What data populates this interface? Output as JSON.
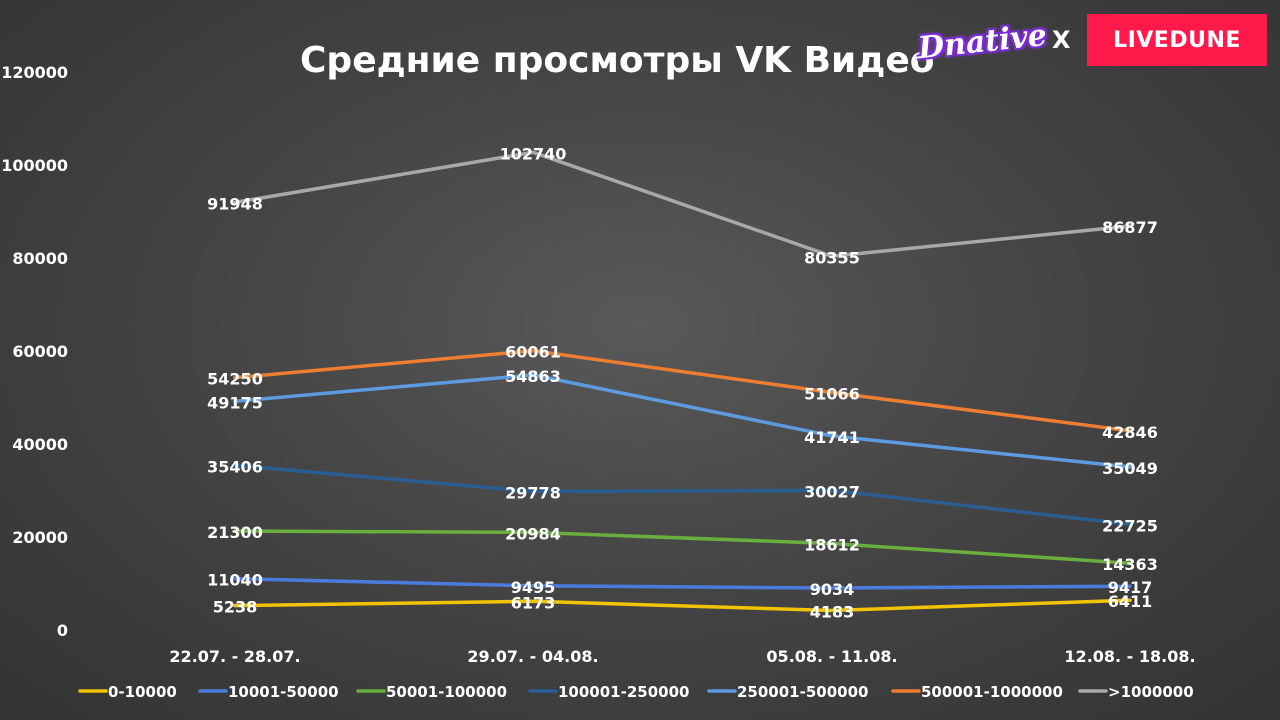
{
  "brand": {
    "left_logo_text": "Dnative",
    "separator": "X",
    "right_logo_text": "LIVEDUNE"
  },
  "chart_data": {
    "type": "line",
    "title": "Средние просмотры VK Видео",
    "xlabel": "",
    "ylabel": "",
    "ylim": [
      0,
      120000
    ],
    "yticks": [
      0,
      20000,
      40000,
      60000,
      80000,
      100000,
      120000
    ],
    "categories": [
      "22.07. - 28.07.",
      "29.07. - 04.08.",
      "05.08. - 11.08.",
      "12.08. - 18.08."
    ],
    "legend_position": "bottom",
    "grid": false,
    "series": [
      {
        "name": "0-10000",
        "color": "#f2c300",
        "values": [
          5238,
          6173,
          4183,
          6411
        ]
      },
      {
        "name": "10001-50000",
        "color": "#4c7be0",
        "values": [
          11040,
          9495,
          9034,
          9417
        ]
      },
      {
        "name": "50001-100000",
        "color": "#6aae3f",
        "values": [
          21300,
          20984,
          18612,
          14363
        ]
      },
      {
        "name": "100001-250000",
        "color": "#2a5e93",
        "values": [
          35406,
          29778,
          30027,
          22725
        ]
      },
      {
        "name": "250001-500000",
        "color": "#5d9be0",
        "values": [
          49175,
          54863,
          41741,
          35049
        ]
      },
      {
        "name": "500001-1000000",
        "color": "#ee7d31",
        "values": [
          54250,
          60061,
          51066,
          42846
        ]
      },
      {
        "name": ">1000000",
        "color": "#a8a8a8",
        "values": [
          91948,
          102740,
          80355,
          86877
        ]
      }
    ]
  }
}
